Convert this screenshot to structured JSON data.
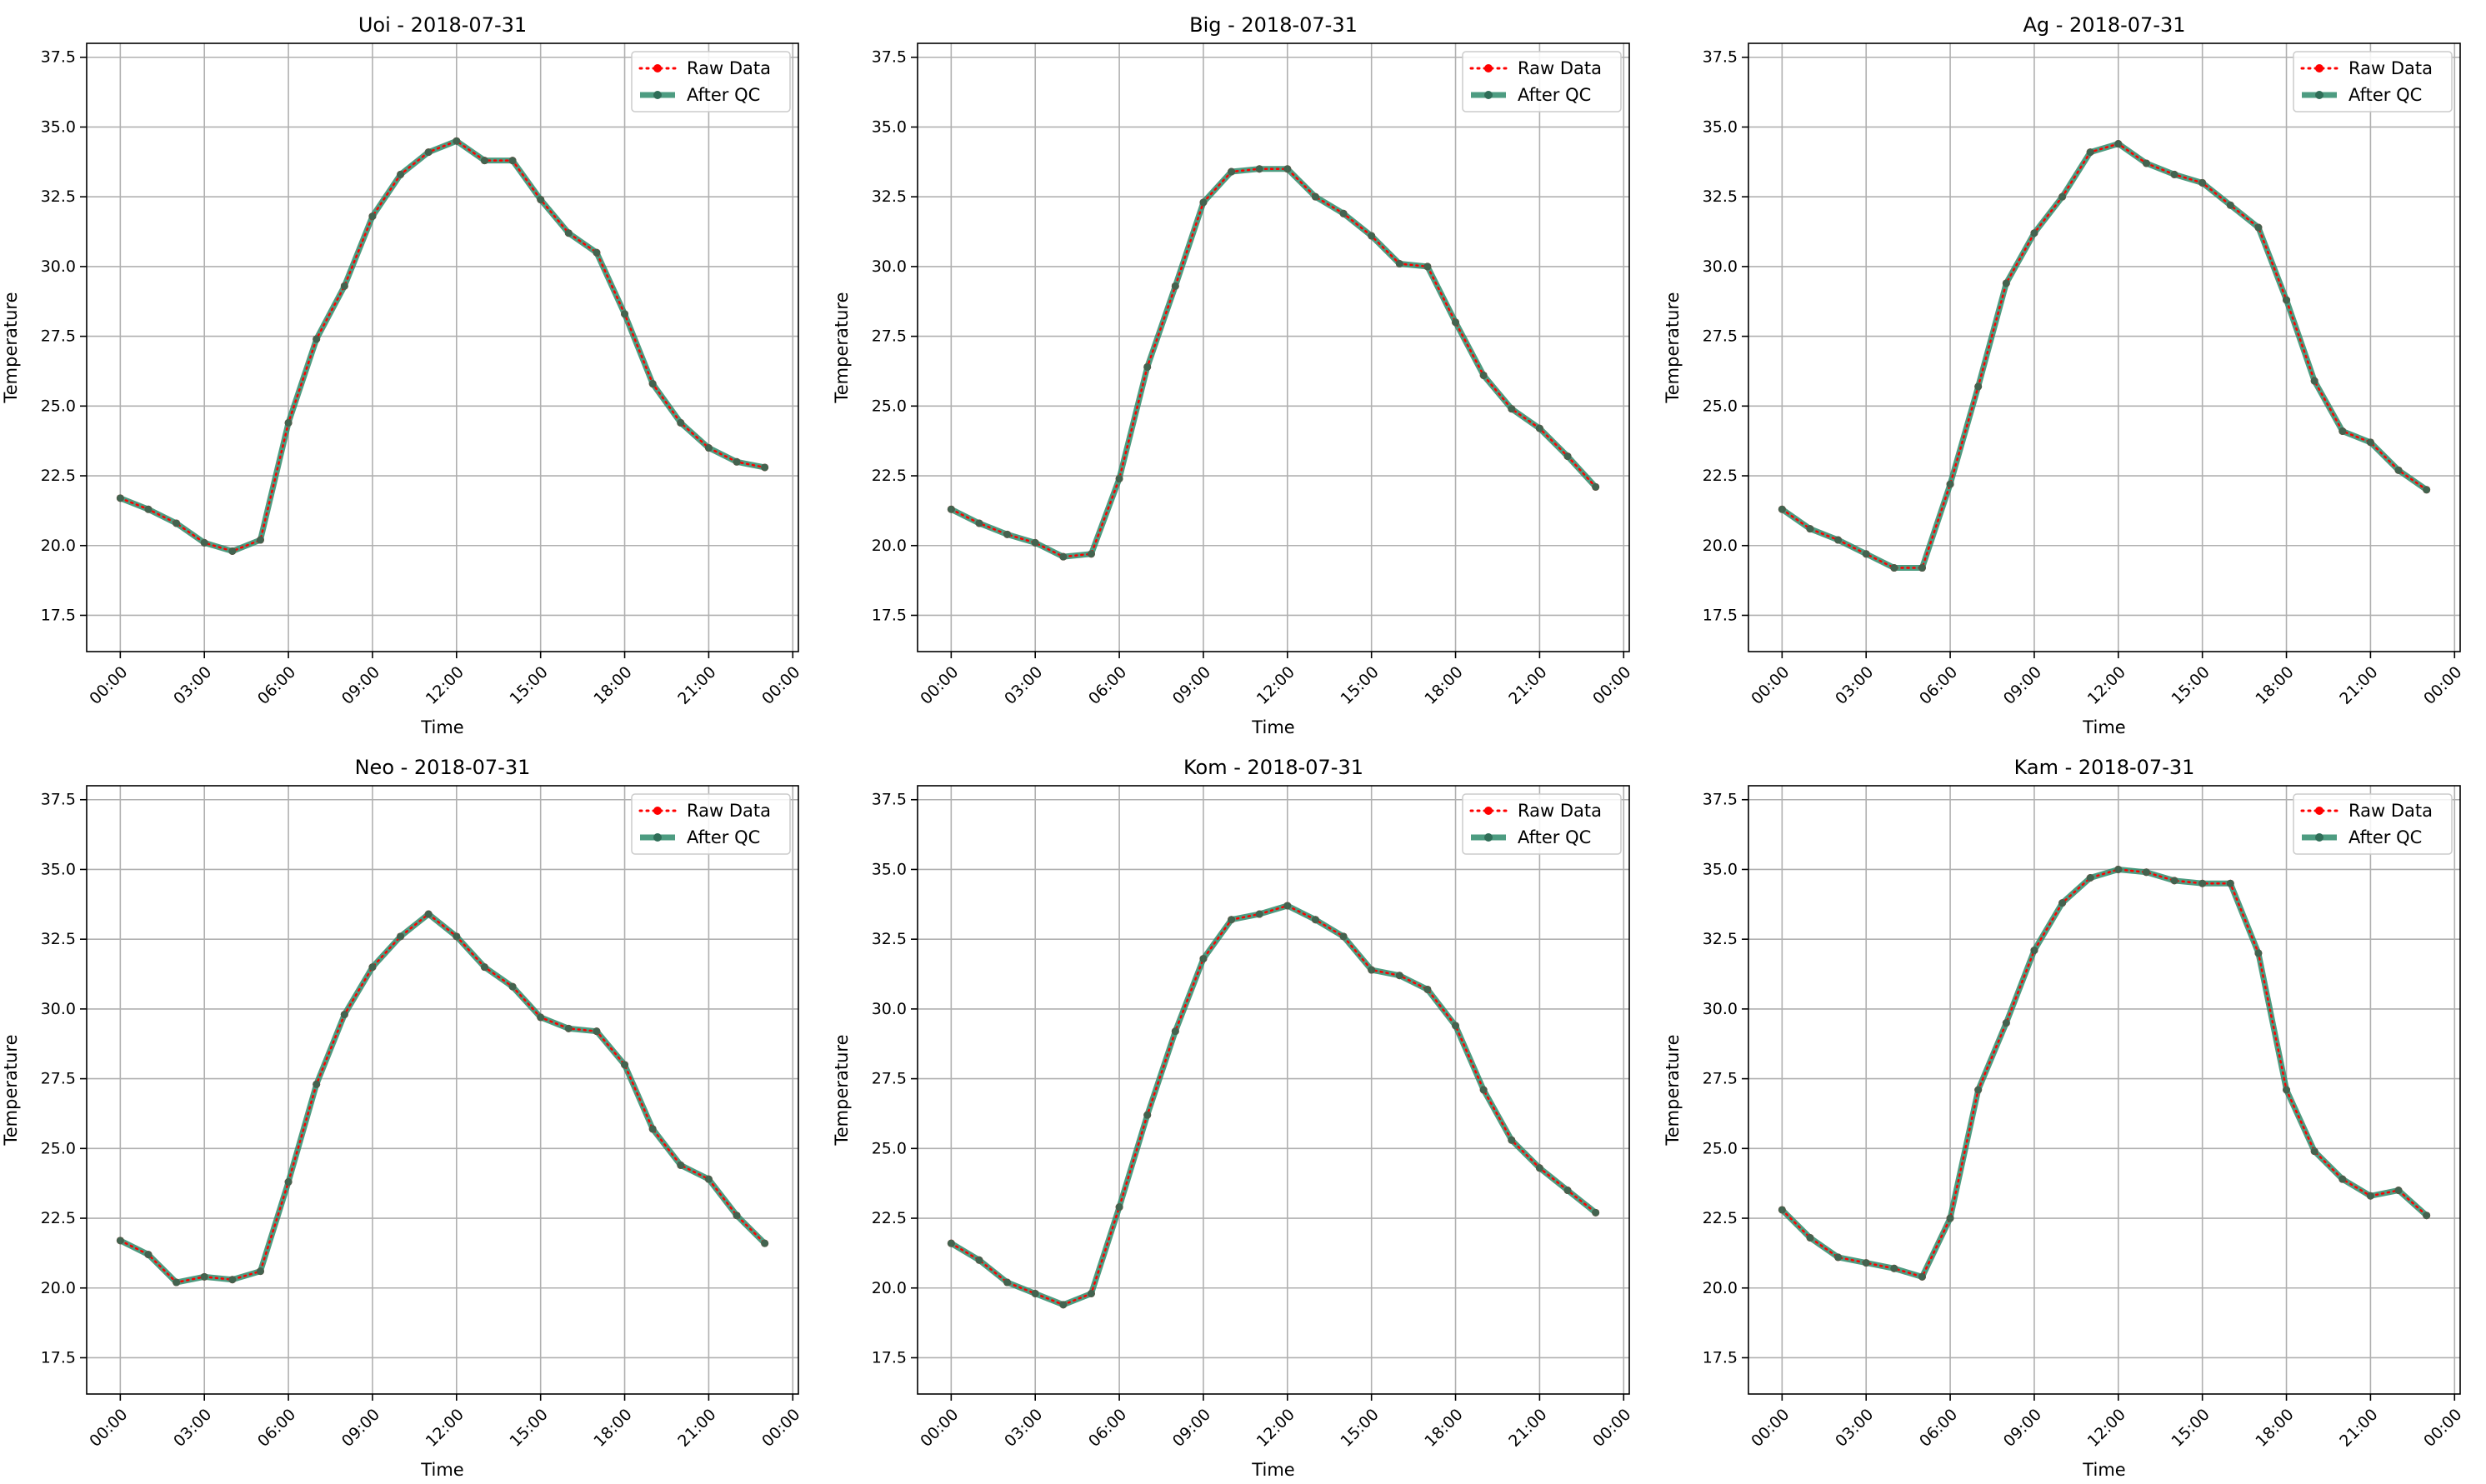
{
  "figure": {
    "x_ticks": [
      "00:00",
      "03:00",
      "06:00",
      "09:00",
      "12:00",
      "15:00",
      "18:00",
      "21:00",
      "00:00"
    ],
    "y_ticks": [
      "17.5",
      "20.0",
      "22.5",
      "25.0",
      "27.5",
      "30.0",
      "32.5",
      "35.0",
      "37.5"
    ],
    "legend": {
      "raw": "Raw Data",
      "qc": "After QC"
    },
    "colors": {
      "raw": "#ff0000",
      "qc": "#2e8b6b",
      "grid": "#b0b0b0",
      "axis": "#000000"
    }
  },
  "chart_data": [
    {
      "type": "line",
      "title": "Uoi - 2018-07-31",
      "xlabel": "Time",
      "ylabel": "Temperature",
      "xlim": [
        -1.2,
        24.2
      ],
      "ylim": [
        16.2,
        38.0
      ],
      "grid": true,
      "legend_position": "top-right",
      "x": [
        0,
        1,
        2,
        3,
        4,
        5,
        6,
        7,
        8,
        9,
        10,
        11,
        12,
        13,
        14,
        15,
        16,
        17,
        18,
        19,
        20,
        21,
        22,
        23
      ],
      "series": [
        {
          "name": "Raw Data",
          "values": [
            21.7,
            21.3,
            20.8,
            20.1,
            19.8,
            20.2,
            24.4,
            27.4,
            29.3,
            31.8,
            33.3,
            34.1,
            34.5,
            33.8,
            33.8,
            32.4,
            31.2,
            30.5,
            28.3,
            25.8,
            24.4,
            23.5,
            23.0,
            22.8
          ]
        },
        {
          "name": "After QC",
          "values": [
            21.7,
            21.3,
            20.8,
            20.1,
            19.8,
            20.2,
            24.4,
            27.4,
            29.3,
            31.8,
            33.3,
            34.1,
            34.5,
            33.8,
            33.8,
            32.4,
            31.2,
            30.5,
            28.3,
            25.8,
            24.4,
            23.5,
            23.0,
            22.8
          ]
        }
      ]
    },
    {
      "type": "line",
      "title": "Big - 2018-07-31",
      "xlabel": "Time",
      "ylabel": "Temperature",
      "xlim": [
        -1.2,
        24.2
      ],
      "ylim": [
        16.2,
        38.0
      ],
      "grid": true,
      "legend_position": "top-right",
      "x": [
        0,
        1,
        2,
        3,
        4,
        5,
        6,
        7,
        8,
        9,
        10,
        11,
        12,
        13,
        14,
        15,
        16,
        17,
        18,
        19,
        20,
        21,
        22,
        23
      ],
      "series": [
        {
          "name": "Raw Data",
          "values": [
            21.3,
            20.8,
            20.4,
            20.1,
            19.6,
            19.7,
            22.4,
            26.4,
            29.3,
            32.3,
            33.4,
            33.5,
            33.5,
            32.5,
            31.9,
            31.1,
            30.1,
            30.0,
            28.0,
            26.1,
            24.9,
            24.2,
            23.2,
            22.1
          ]
        },
        {
          "name": "After QC",
          "values": [
            21.3,
            20.8,
            20.4,
            20.1,
            19.6,
            19.7,
            22.4,
            26.4,
            29.3,
            32.3,
            33.4,
            33.5,
            33.5,
            32.5,
            31.9,
            31.1,
            30.1,
            30.0,
            28.0,
            26.1,
            24.9,
            24.2,
            23.2,
            22.1
          ]
        }
      ]
    },
    {
      "type": "line",
      "title": "Ag - 2018-07-31",
      "xlabel": "Time",
      "ylabel": "Temperature",
      "xlim": [
        -1.2,
        24.2
      ],
      "ylim": [
        16.2,
        38.0
      ],
      "grid": true,
      "legend_position": "top-right",
      "x": [
        0,
        1,
        2,
        3,
        4,
        5,
        6,
        7,
        8,
        9,
        10,
        11,
        12,
        13,
        14,
        15,
        16,
        17,
        18,
        19,
        20,
        21,
        22,
        23
      ],
      "series": [
        {
          "name": "Raw Data",
          "values": [
            21.3,
            20.6,
            20.2,
            19.7,
            19.2,
            19.2,
            22.2,
            25.7,
            29.4,
            31.2,
            32.5,
            34.1,
            34.4,
            33.7,
            33.3,
            33.0,
            32.2,
            31.4,
            28.8,
            25.9,
            24.1,
            23.7,
            22.7,
            22.0
          ]
        },
        {
          "name": "After QC",
          "values": [
            21.3,
            20.6,
            20.2,
            19.7,
            19.2,
            19.2,
            22.2,
            25.7,
            29.4,
            31.2,
            32.5,
            34.1,
            34.4,
            33.7,
            33.3,
            33.0,
            32.2,
            31.4,
            28.8,
            25.9,
            24.1,
            23.7,
            22.7,
            22.0
          ]
        }
      ]
    },
    {
      "type": "line",
      "title": "Neo - 2018-07-31",
      "xlabel": "Time",
      "ylabel": "Temperature",
      "xlim": [
        -1.2,
        24.2
      ],
      "ylim": [
        16.2,
        38.0
      ],
      "grid": true,
      "legend_position": "top-right",
      "x": [
        0,
        1,
        2,
        3,
        4,
        5,
        6,
        7,
        8,
        9,
        10,
        11,
        12,
        13,
        14,
        15,
        16,
        17,
        18,
        19,
        20,
        21,
        22,
        23
      ],
      "series": [
        {
          "name": "Raw Data",
          "values": [
            21.7,
            21.2,
            20.2,
            20.4,
            20.3,
            20.6,
            23.8,
            27.3,
            29.8,
            31.5,
            32.6,
            33.4,
            32.6,
            31.5,
            30.8,
            29.7,
            29.3,
            29.2,
            28.0,
            25.7,
            24.4,
            23.9,
            22.6,
            21.6
          ]
        },
        {
          "name": "After QC",
          "values": [
            21.7,
            21.2,
            20.2,
            20.4,
            20.3,
            20.6,
            23.8,
            27.3,
            29.8,
            31.5,
            32.6,
            33.4,
            32.6,
            31.5,
            30.8,
            29.7,
            29.3,
            29.2,
            28.0,
            25.7,
            24.4,
            23.9,
            22.6,
            21.6
          ]
        }
      ]
    },
    {
      "type": "line",
      "title": "Kom - 2018-07-31",
      "xlabel": "Time",
      "ylabel": "Temperature",
      "xlim": [
        -1.2,
        24.2
      ],
      "ylim": [
        16.2,
        38.0
      ],
      "grid": true,
      "legend_position": "top-right",
      "x": [
        0,
        1,
        2,
        3,
        4,
        5,
        6,
        7,
        8,
        9,
        10,
        11,
        12,
        13,
        14,
        15,
        16,
        17,
        18,
        19,
        20,
        21,
        22,
        23
      ],
      "series": [
        {
          "name": "Raw Data",
          "values": [
            21.6,
            21.0,
            20.2,
            19.8,
            19.4,
            19.8,
            22.9,
            26.2,
            29.2,
            31.8,
            33.2,
            33.4,
            33.7,
            33.2,
            32.6,
            31.4,
            31.2,
            30.7,
            29.4,
            27.1,
            25.3,
            24.3,
            23.5,
            22.7
          ]
        },
        {
          "name": "After QC",
          "values": [
            21.6,
            21.0,
            20.2,
            19.8,
            19.4,
            19.8,
            22.9,
            26.2,
            29.2,
            31.8,
            33.2,
            33.4,
            33.7,
            33.2,
            32.6,
            31.4,
            31.2,
            30.7,
            29.4,
            27.1,
            25.3,
            24.3,
            23.5,
            22.7
          ]
        }
      ]
    },
    {
      "type": "line",
      "title": "Kam - 2018-07-31",
      "xlabel": "Time",
      "ylabel": "Temperature",
      "xlim": [
        -1.2,
        24.2
      ],
      "ylim": [
        16.2,
        38.0
      ],
      "grid": true,
      "legend_position": "top-right",
      "x": [
        0,
        1,
        2,
        3,
        4,
        5,
        6,
        7,
        8,
        9,
        10,
        11,
        12,
        13,
        14,
        15,
        16,
        17,
        18,
        19,
        20,
        21,
        22,
        23
      ],
      "series": [
        {
          "name": "Raw Data",
          "values": [
            22.8,
            21.8,
            21.1,
            20.9,
            20.7,
            20.4,
            22.5,
            27.1,
            29.5,
            32.1,
            33.8,
            34.7,
            35.0,
            34.9,
            34.6,
            34.5,
            34.5,
            32.0,
            27.1,
            24.9,
            23.9,
            23.3,
            23.5,
            22.6
          ]
        },
        {
          "name": "After QC",
          "values": [
            22.8,
            21.8,
            21.1,
            20.9,
            20.7,
            20.4,
            22.5,
            27.1,
            29.5,
            32.1,
            33.8,
            34.7,
            35.0,
            34.9,
            34.6,
            34.5,
            34.5,
            32.0,
            27.1,
            24.9,
            23.9,
            23.3,
            23.5,
            22.6
          ]
        }
      ]
    }
  ]
}
